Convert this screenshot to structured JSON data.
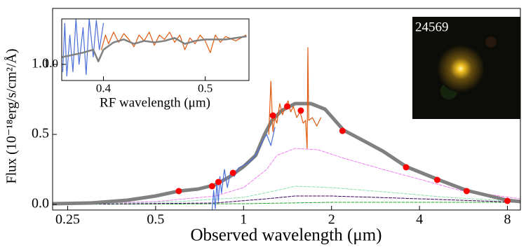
{
  "chart_data": [
    {
      "type": "line",
      "xscale": "log",
      "xlabel": "Observed wavelength (μm)",
      "ylabel": "Flux (10⁻¹⁸erg/s/cm²/Å)",
      "xlim": [
        0.222,
        8.86
      ],
      "ylim": [
        -0.04,
        1.4
      ],
      "xticks": [
        0.25,
        0.5,
        1,
        2,
        4,
        8
      ],
      "yticks": [
        {
          "value": 0,
          "label": "0.0"
        },
        {
          "value": 0.5,
          "label": "0.5"
        },
        {
          "value": 1,
          "label": "1.0"
        }
      ],
      "series": [
        {
          "style": "dashed",
          "color": "#20a020",
          "x": [
            0.222,
            1,
            2,
            8.86
          ],
          "values": [
            0,
            0.005,
            0.015,
            0.015
          ]
        },
        {
          "style": "dashed",
          "color": "#400060",
          "x": [
            0.222,
            0.8,
            1.2,
            1.5,
            2,
            4,
            8.86
          ],
          "values": [
            0,
            0.01,
            0.04,
            0.06,
            0.06,
            0.04,
            0.015
          ]
        },
        {
          "style": "dashed",
          "color": "#90e0b0",
          "x": [
            0.222,
            0.6,
            1,
            1.3,
            1.5,
            2,
            3,
            5,
            8.86
          ],
          "values": [
            0,
            0.02,
            0.05,
            0.1,
            0.13,
            0.12,
            0.09,
            0.05,
            0.02
          ]
        },
        {
          "style": "dashed",
          "color": "#f07ff0",
          "x": [
            0.222,
            0.5,
            0.8,
            1,
            1.2,
            1.3,
            1.5,
            1.8,
            2.2,
            3,
            4,
            5.5,
            8.86
          ],
          "values": [
            0.002,
            0.02,
            0.06,
            0.12,
            0.25,
            0.35,
            0.4,
            0.39,
            0.33,
            0.25,
            0.18,
            0.1,
            0.04
          ]
        },
        {
          "style": "thick",
          "color": "#808080",
          "x": [
            0.222,
            0.3,
            0.4,
            0.5,
            0.6,
            0.7,
            0.8,
            0.9,
            1.0,
            1.1,
            1.18,
            1.25,
            1.35,
            1.5,
            1.7,
            1.9,
            2.2,
            2.6,
            3.0,
            3.6,
            4.6,
            5.8,
            8,
            8.86
          ],
          "values": [
            0.005,
            0.01,
            0.03,
            0.06,
            0.095,
            0.11,
            0.14,
            0.2,
            0.27,
            0.35,
            0.5,
            0.6,
            0.67,
            0.72,
            0.72,
            0.68,
            0.53,
            0.45,
            0.38,
            0.27,
            0.18,
            0.1,
            0.03,
            0.02
          ]
        },
        {
          "style": "thin",
          "color": "#4a6fd8",
          "x": [
            0.78,
            0.79,
            0.8,
            0.81,
            0.82,
            0.83,
            0.84,
            0.86,
            0.88,
            0.9,
            0.93,
            0.96,
            1.0,
            1.04,
            1.08,
            1.12,
            1.16,
            1.2,
            1.24,
            1.28
          ],
          "values": [
            -0.05,
            0.1,
            -0.03,
            0.15,
            0.02,
            0.2,
            0.08,
            0.25,
            0.12,
            0.22,
            0.2,
            0.26,
            0.28,
            0.3,
            0.33,
            0.38,
            0.45,
            0.5,
            0.42,
            0.55
          ]
        },
        {
          "style": "thin",
          "color": "#e05a10",
          "x": [
            1.22,
            1.24,
            1.26,
            1.28,
            1.3,
            1.33,
            1.36,
            1.39,
            1.42,
            1.45,
            1.48,
            1.52,
            1.56,
            1.6,
            1.63,
            1.65,
            1.66,
            1.67,
            1.72,
            1.78,
            1.84
          ],
          "values": [
            0.5,
            0.88,
            0.52,
            0.62,
            0.58,
            0.72,
            0.64,
            0.7,
            0.74,
            0.66,
            0.7,
            0.62,
            0.66,
            0.58,
            0.6,
            0.4,
            1.12,
            0.6,
            0.62,
            0.56,
            0.62
          ]
        },
        {
          "style": "dots",
          "color": "#ff0000",
          "x": [
            0.6,
            0.78,
            0.82,
            0.92,
            1.26,
            1.41,
            1.57,
            2.18,
            3.6,
            4.6,
            5.8,
            8.0
          ],
          "values": [
            0.095,
            0.13,
            0.16,
            0.225,
            0.635,
            0.7,
            0.67,
            0.525,
            0.265,
            0.175,
            0.095,
            0.025
          ]
        }
      ]
    },
    {
      "type": "line",
      "xscale": "linear",
      "xlabel": "RF wavelength (μm)",
      "xlim": [
        0.359,
        0.543
      ],
      "ylim": [
        0.89,
        1.31
      ],
      "xticks": [
        0.4,
        0.5
      ],
      "yticks": [
        {
          "value": 1,
          "label": "1.0"
        }
      ],
      "series": [
        {
          "style": "thin",
          "color": "#4a6fd8",
          "x": [
            0.36,
            0.362,
            0.364,
            0.367,
            0.37,
            0.373,
            0.376,
            0.38,
            0.383,
            0.386,
            0.39,
            0.393,
            0.396,
            0.4
          ],
          "values": [
            0.95,
            1.28,
            0.92,
            1.2,
            0.95,
            1.31,
            1.0,
            1.25,
            0.93,
            1.31,
            1.05,
            1.3,
            1.1,
            1.28
          ]
        },
        {
          "style": "thin",
          "color": "#e05a10",
          "x": [
            0.398,
            0.402,
            0.405,
            0.41,
            0.415,
            0.42,
            0.425,
            0.43,
            0.435,
            0.44,
            0.445,
            0.45,
            0.455,
            0.46,
            0.465,
            0.47,
            0.475,
            0.48,
            0.485,
            0.49,
            0.495,
            0.5,
            0.505,
            0.51,
            0.515,
            0.52,
            0.53,
            0.54
          ],
          "values": [
            1.1,
            1.2,
            1.14,
            1.22,
            1.15,
            1.21,
            1.17,
            1.12,
            1.2,
            1.16,
            1.22,
            1.13,
            1.2,
            1.17,
            1.22,
            1.15,
            1.2,
            1.1,
            1.18,
            1.14,
            1.2,
            1.16,
            1.08,
            1.2,
            1.15,
            1.19,
            1.16,
            1.2
          ]
        },
        {
          "style": "medium",
          "color": "#808080",
          "x": [
            0.36,
            0.38,
            0.39,
            0.395,
            0.4,
            0.41,
            0.42,
            0.43,
            0.44,
            0.45,
            0.46,
            0.47,
            0.48,
            0.49,
            0.5,
            0.52,
            0.54
          ],
          "values": [
            1.05,
            1.08,
            1.1,
            1.02,
            1.1,
            1.15,
            1.17,
            1.14,
            1.16,
            1.15,
            1.16,
            1.18,
            1.14,
            1.16,
            1.17,
            1.17,
            1.19
          ]
        }
      ]
    }
  ],
  "image_label": "24569"
}
